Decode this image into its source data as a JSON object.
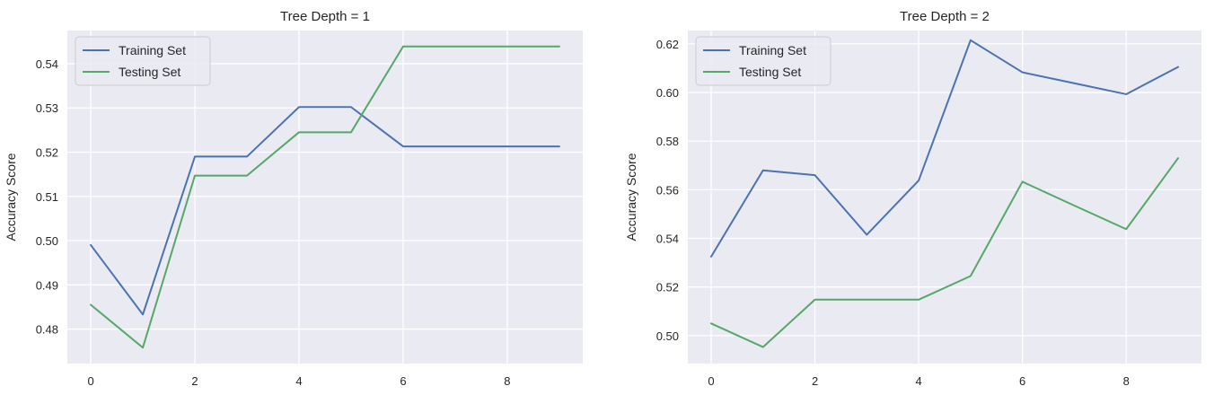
{
  "colors": {
    "plot_background": "#eaeaf2",
    "grid": "#ffffff",
    "training": "#4c72b0",
    "testing": "#55a868"
  },
  "chart_data": [
    {
      "type": "line",
      "title": "Tree Depth = 1",
      "ylabel": "Accuracy Score",
      "xlabel": "",
      "xlim": [
        -0.45,
        9.45
      ],
      "ylim": [
        0.4722,
        0.5475
      ],
      "xticks": [
        0,
        2,
        4,
        6,
        8
      ],
      "yticks": [
        0.48,
        0.49,
        0.5,
        0.51,
        0.52,
        0.53,
        0.54
      ],
      "ytick_decimals": 2,
      "grid": true,
      "legend": "upper left",
      "x": [
        0,
        1,
        2,
        3,
        4,
        5,
        6,
        7,
        8,
        9
      ],
      "series": [
        {
          "name": "Training Set",
          "values": [
            0.499,
            0.4833,
            0.519,
            0.519,
            0.5302,
            0.5302,
            0.5213,
            0.5213,
            0.5213,
            0.5213
          ]
        },
        {
          "name": "Testing Set",
          "values": [
            0.4855,
            0.4758,
            0.5147,
            0.5147,
            0.5245,
            0.5245,
            0.5439,
            0.5439,
            0.5439,
            0.5439
          ]
        }
      ]
    },
    {
      "type": "line",
      "title": "Tree Depth = 2",
      "ylabel": "Accuracy Score",
      "xlabel": "",
      "xlim": [
        -0.45,
        9.45
      ],
      "ylim": [
        0.4885,
        0.6255
      ],
      "xticks": [
        0,
        2,
        4,
        6,
        8
      ],
      "yticks": [
        0.5,
        0.52,
        0.54,
        0.56,
        0.58,
        0.6,
        0.62
      ],
      "ytick_decimals": 2,
      "grid": true,
      "legend": "upper left",
      "x": [
        0,
        1,
        2,
        3,
        4,
        5,
        6,
        7,
        8,
        9
      ],
      "series": [
        {
          "name": "Training Set",
          "values": [
            0.5325,
            0.568,
            0.566,
            0.5415,
            0.5638,
            0.6215,
            0.6083,
            0.6038,
            0.5993,
            0.6105
          ]
        },
        {
          "name": "Testing Set",
          "values": [
            0.505,
            0.4953,
            0.5148,
            0.5148,
            0.5148,
            0.5245,
            0.5633,
            0.5535,
            0.5438,
            0.573
          ]
        }
      ]
    }
  ]
}
